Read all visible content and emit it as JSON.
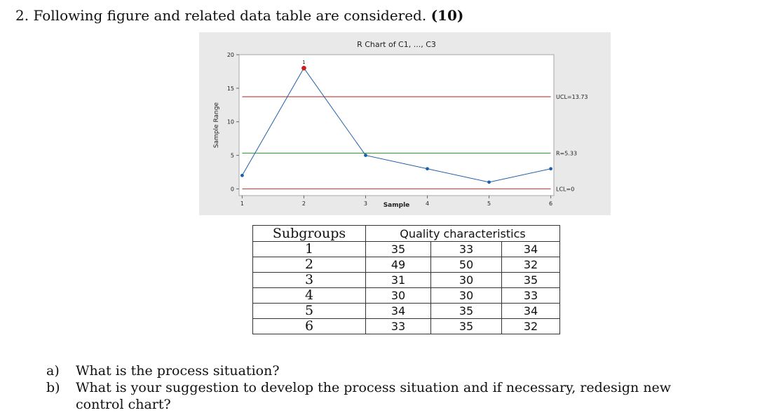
{
  "question": {
    "number": "2.",
    "text": "Following figure and related data table are considered.",
    "points": "(10)"
  },
  "chart_data": {
    "type": "line",
    "title": "R Chart of C1, ..., C3",
    "xlabel": "Sample",
    "ylabel": "Sample Range",
    "x": [
      1,
      2,
      3,
      4,
      5,
      6
    ],
    "series": [
      {
        "values": [
          2,
          18,
          5,
          3,
          1,
          3
        ],
        "color": "#1f5fa8",
        "out_of_control": [
          2
        ],
        "out_of_control_color": "#d21a1a",
        "flag_label": "1"
      }
    ],
    "control_limits": [
      {
        "label": "UCL=13.73",
        "value": 13.73,
        "color": "#c44a4a"
      },
      {
        "label": "R=5.33",
        "value": 5.33,
        "color": "#3aa63a"
      },
      {
        "label": "LCL=0",
        "value": 0,
        "color": "#c44a4a"
      }
    ],
    "ylim": [
      -1,
      20
    ],
    "yticks": [
      0,
      5,
      10,
      15,
      20
    ],
    "xticks": [
      1,
      2,
      3,
      4,
      5,
      6
    ],
    "xlim": [
      0.95,
      6.05
    ],
    "grid": false,
    "background": "#e9e9e9"
  },
  "table": {
    "headers": [
      "Subgroups",
      "Quality characteristics"
    ],
    "rows": [
      {
        "subgroup": "1",
        "values": [
          "35",
          "33",
          "34"
        ]
      },
      {
        "subgroup": "2",
        "values": [
          "49",
          "50",
          "32"
        ]
      },
      {
        "subgroup": "3",
        "values": [
          "31",
          "30",
          "35"
        ]
      },
      {
        "subgroup": "4",
        "values": [
          "30",
          "30",
          "33"
        ]
      },
      {
        "subgroup": "5",
        "values": [
          "34",
          "35",
          "34"
        ]
      },
      {
        "subgroup": "6",
        "values": [
          "33",
          "35",
          "32"
        ]
      }
    ]
  },
  "subquestions": [
    {
      "letter": "a)",
      "text": "What is the process situation?"
    },
    {
      "letter": "b)",
      "text": "What is your suggestion to develop the process situation and if necessary, redesign new",
      "continuation": "control chart?"
    }
  ]
}
